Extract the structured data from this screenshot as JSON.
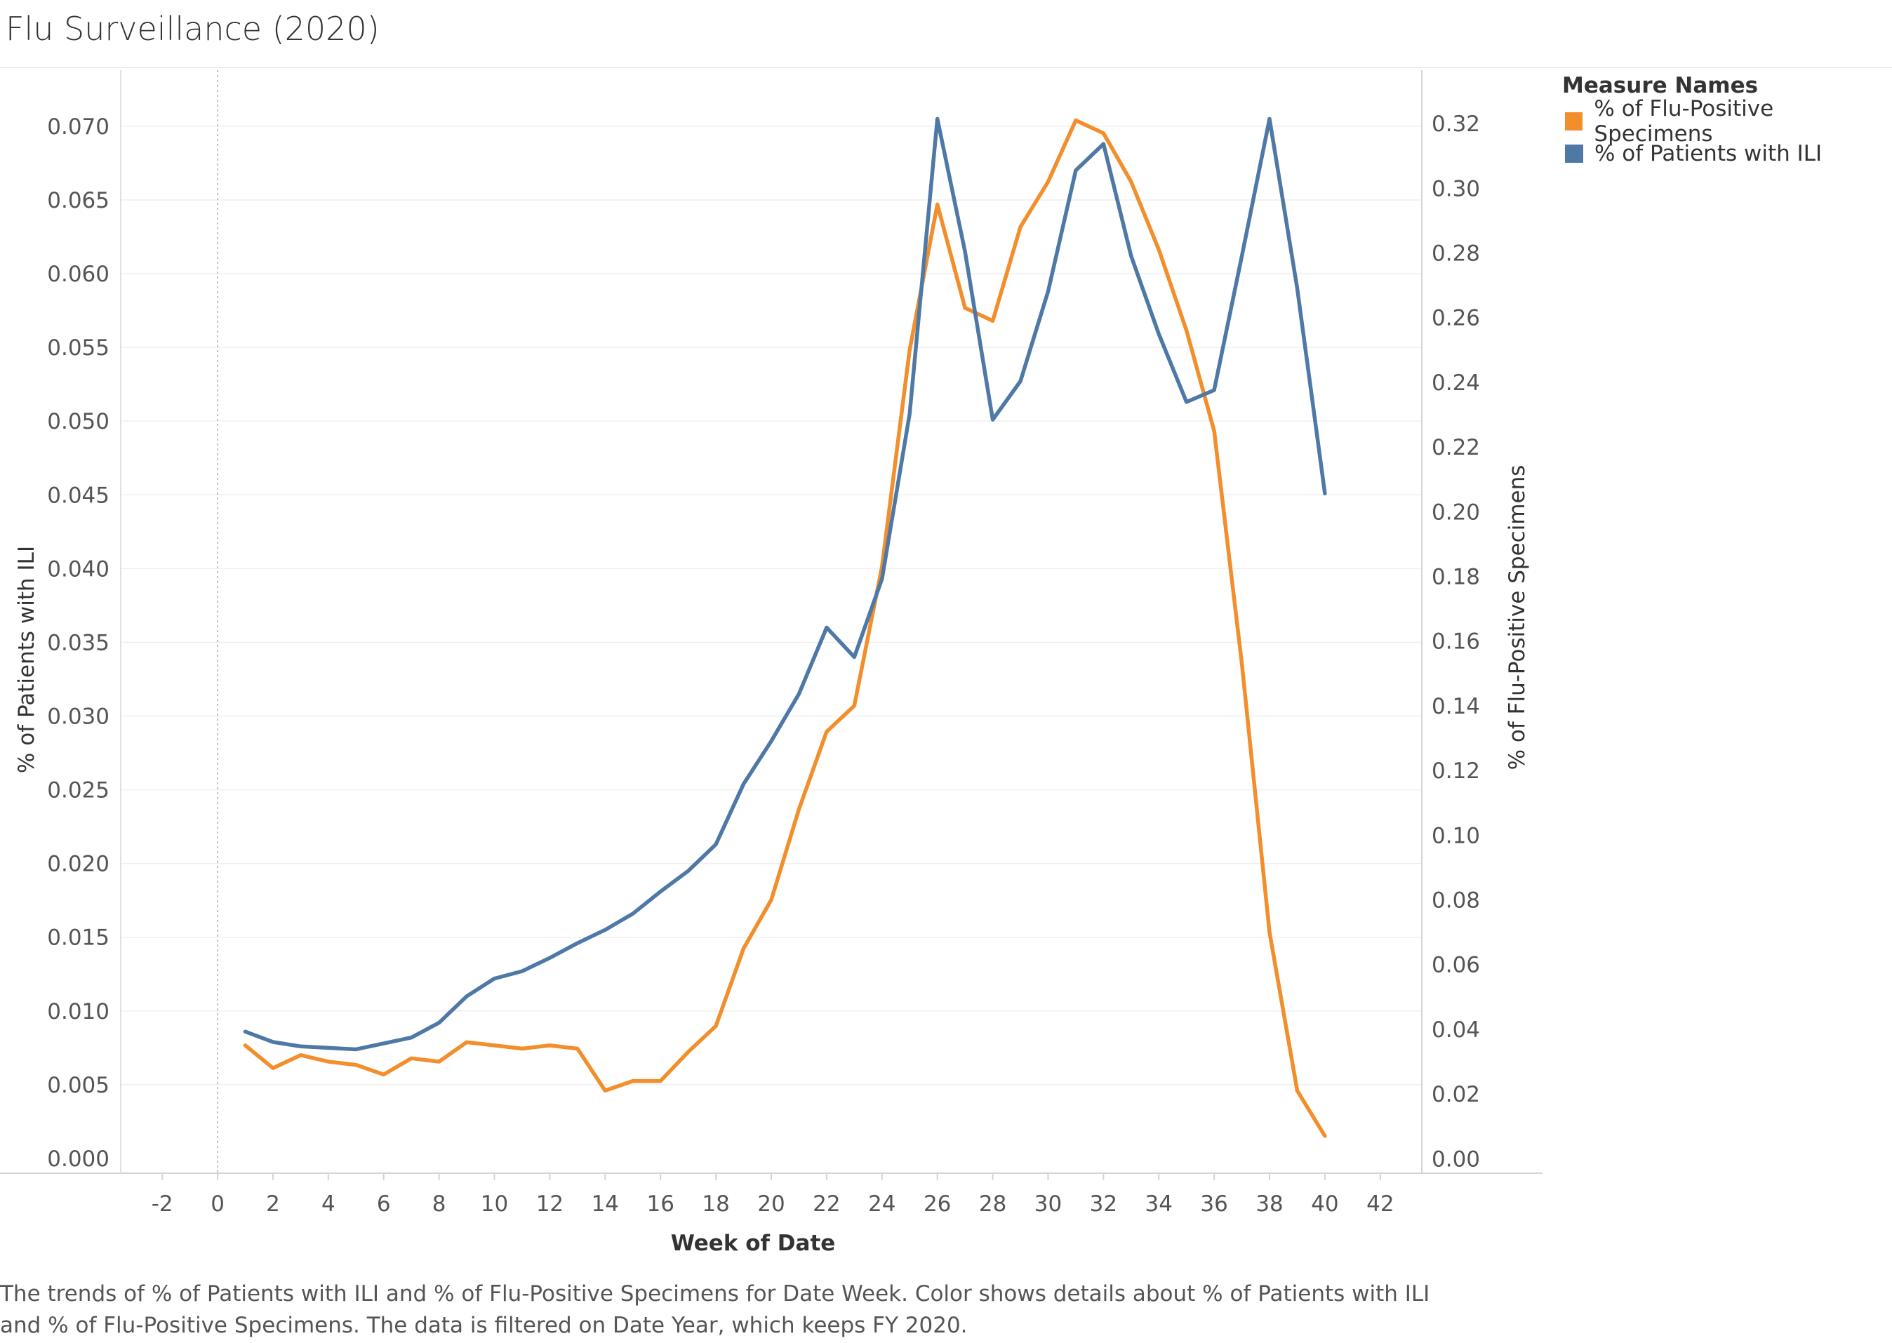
{
  "title": "Flu Surveillance (2020)",
  "legend": {
    "title": "Measure Names",
    "items": [
      {
        "label": "% of Flu-Positive Specimens",
        "color": "#f28e2b"
      },
      {
        "label": "% of Patients with ILI",
        "color": "#4e79a7"
      }
    ]
  },
  "caption": "The trends of % of Patients with ILI and % of Flu-Positive Specimens for Date Week.  Color shows details about % of Patients with ILI and % of Flu-Positive Specimens. The data is filtered on Date Year, which keeps FY 2020.",
  "chart_data": {
    "type": "line",
    "xlabel": "Week of Date",
    "ylabel_left": "% of Patients with ILI",
    "ylabel_right": "% of Flu-Positive Specimens",
    "xlim": [
      -3.5,
      43.5
    ],
    "x_ticks": [
      -2,
      0,
      2,
      4,
      6,
      8,
      10,
      12,
      14,
      16,
      18,
      20,
      22,
      24,
      26,
      28,
      30,
      32,
      34,
      36,
      38,
      40,
      42
    ],
    "ylim_left": [
      -0.001,
      0.0738
    ],
    "ylim_right": [
      -0.0045,
      0.3365
    ],
    "y_ticks_left": [
      "0.000",
      "0.005",
      "0.010",
      "0.015",
      "0.020",
      "0.025",
      "0.030",
      "0.035",
      "0.040",
      "0.045",
      "0.050",
      "0.055",
      "0.060",
      "0.065",
      "0.070"
    ],
    "y_ticks_right": [
      "0.00",
      "0.02",
      "0.04",
      "0.06",
      "0.08",
      "0.10",
      "0.12",
      "0.14",
      "0.16",
      "0.18",
      "0.20",
      "0.22",
      "0.24",
      "0.26",
      "0.28",
      "0.30",
      "0.32"
    ],
    "grid": true,
    "x": [
      1,
      2,
      3,
      4,
      5,
      6,
      7,
      8,
      9,
      10,
      11,
      12,
      13,
      14,
      15,
      16,
      17,
      18,
      19,
      20,
      21,
      22,
      23,
      24,
      25,
      26,
      27,
      28,
      29,
      30,
      31,
      32,
      33,
      34,
      35,
      36,
      37,
      38,
      39,
      40
    ],
    "series": [
      {
        "name": "% of Patients with ILI",
        "axis": "left",
        "color": "#4e79a7",
        "values": [
          0.0086,
          0.0079,
          0.0076,
          0.0075,
          0.0074,
          0.0078,
          0.0082,
          0.0092,
          0.011,
          0.0122,
          0.0127,
          0.0136,
          0.0146,
          0.0155,
          0.0166,
          0.0181,
          0.0195,
          0.0213,
          0.0254,
          0.0283,
          0.0315,
          0.036,
          0.034,
          0.0393,
          0.0505,
          0.0705,
          0.0615,
          0.0501,
          0.0527,
          0.0588,
          0.067,
          0.0688,
          0.0612,
          0.0559,
          0.0513,
          0.0521,
          0.0612,
          0.0705,
          0.059,
          0.0451
        ]
      },
      {
        "name": "% of Flu-Positive Specimens",
        "axis": "right",
        "color": "#f28e2b",
        "values": [
          0.035,
          0.028,
          0.032,
          0.03,
          0.029,
          0.026,
          0.031,
          0.03,
          0.036,
          0.035,
          0.034,
          0.035,
          0.034,
          0.021,
          0.024,
          0.024,
          0.033,
          0.041,
          0.065,
          0.08,
          0.108,
          0.132,
          0.14,
          0.183,
          0.25,
          0.295,
          0.263,
          0.259,
          0.288,
          0.302,
          0.321,
          0.317,
          0.302,
          0.281,
          0.256,
          0.225,
          0.153,
          0.07,
          0.021,
          0.007
        ]
      }
    ]
  }
}
